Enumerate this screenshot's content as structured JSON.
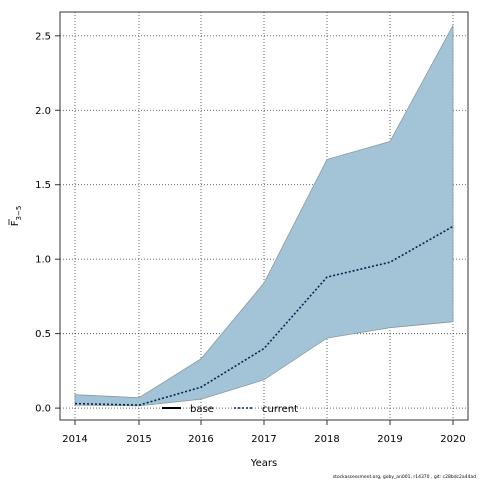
{
  "chart_data": {
    "type": "area",
    "x": [
      2014,
      2015,
      2016,
      2017,
      2018,
      2019,
      2020
    ],
    "xlabel": "Years",
    "ylabel_main": "F",
    "ylabel_sub": "3−5",
    "ylim": [
      -0.08,
      2.66
    ],
    "yticks": [
      0.0,
      0.5,
      1.0,
      1.5,
      2.0,
      2.5
    ],
    "ytick_labels": [
      "0.0",
      "0.5",
      "1.0",
      "1.5",
      "2.0",
      "2.5"
    ],
    "xtick_labels": [
      "2014",
      "2015",
      "2016",
      "2017",
      "2018",
      "2019",
      "2020"
    ],
    "grid": true,
    "band": {
      "lower": [
        0.02,
        0.015,
        0.06,
        0.19,
        0.47,
        0.54,
        0.58
      ],
      "upper": [
        0.09,
        0.07,
        0.33,
        0.84,
        1.67,
        1.79,
        2.57
      ],
      "color": "#a3c4d6"
    },
    "series": [
      {
        "name": "current",
        "values": [
          0.03,
          0.02,
          0.14,
          0.4,
          0.88,
          0.98,
          1.22
        ],
        "color": "#00264d",
        "dash": "dotted"
      }
    ],
    "legend": {
      "position": "bottom-center",
      "items": [
        {
          "label": "base",
          "style": "solid",
          "color": "#000000"
        },
        {
          "label": "current",
          "style": "dotted",
          "color": "#00264d"
        }
      ]
    },
    "footer": "stockassessment.org, goby_an001, r14370 , git: c28bdc2a44ad"
  }
}
